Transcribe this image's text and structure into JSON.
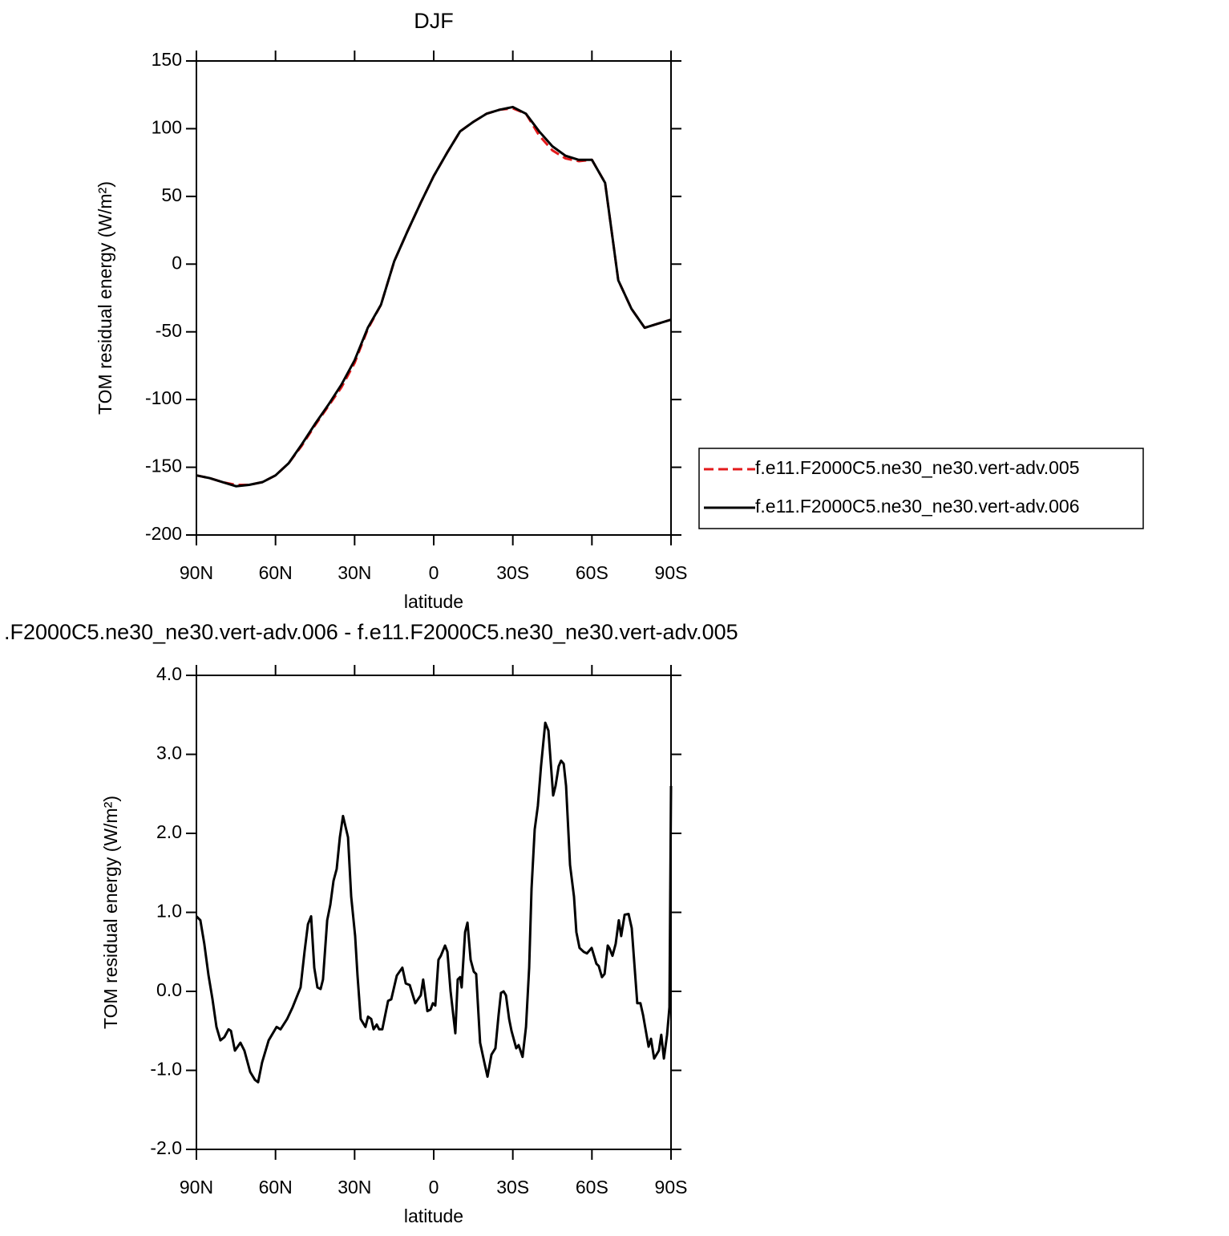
{
  "chart_data": [
    {
      "type": "line",
      "title": "DJF",
      "xlabel": "latitude",
      "ylabel": "TOM residual energy (W/m²)",
      "x": [
        90,
        85,
        80,
        75,
        70,
        65,
        60,
        55,
        50,
        45,
        40,
        35,
        30,
        25,
        20,
        15,
        10,
        5,
        0,
        -5,
        -10,
        -15,
        -20,
        -25,
        -30,
        -35,
        -40,
        -45,
        -50,
        -55,
        -60,
        -65,
        -70,
        -75,
        -80,
        -85,
        -90
      ],
      "series": [
        {
          "name": "f.e11.F2000C5.ne30_ne30.vert-adv.005",
          "color": "#e31a1c",
          "style": "dashed",
          "values": [
            -156,
            -158,
            -161,
            -163,
            -163,
            -161,
            -156,
            -147,
            -134,
            -119,
            -105,
            -91,
            -73,
            -48,
            -30,
            2,
            24,
            45,
            65,
            82,
            98,
            105,
            111,
            114,
            115,
            111,
            95,
            84,
            78,
            76,
            77,
            60,
            -12,
            -33,
            -47,
            -44,
            -41
          ]
        },
        {
          "name": "f.e11.F2000C5.ne30_ne30.vert-adv.006",
          "color": "#000000",
          "style": "solid",
          "values": [
            -156,
            -158,
            -161,
            -164,
            -163,
            -161,
            -156,
            -147,
            -133,
            -118,
            -104,
            -89,
            -71,
            -47,
            -30,
            2,
            24,
            45,
            65,
            82,
            98,
            105,
            111,
            114,
            116,
            111,
            98,
            87,
            80,
            77,
            77,
            60,
            -12,
            -33,
            -47,
            -44,
            -41
          ]
        }
      ],
      "xlim": [
        90,
        -90
      ],
      "xticks": [
        {
          "value": 90,
          "label": "90N"
        },
        {
          "value": 60,
          "label": "60N"
        },
        {
          "value": 30,
          "label": "30N"
        },
        0,
        {
          "value": -30,
          "label": "30S"
        },
        {
          "value": -60,
          "label": "60S"
        },
        {
          "value": -90,
          "label": "90S"
        }
      ],
      "ylim": [
        -200,
        150
      ],
      "yticks": [
        -200,
        -150,
        -100,
        -50,
        0,
        50,
        100,
        150
      ],
      "legend": "right"
    },
    {
      "type": "line",
      "title": ".F2000C5.ne30_ne30.vert-adv.006 - f.e11.F2000C5.ne30_ne30.vert-adv.005",
      "xlabel": "latitude",
      "ylabel": "TOM residual energy (W/m²)",
      "x": [
        90,
        88.5,
        87.0,
        85.4,
        83.9,
        82.4,
        80.9,
        79.4,
        77.8,
        76.9,
        75.4,
        73.3,
        71.8,
        69.6,
        67.8,
        66.6,
        65.1,
        62.6,
        59.6,
        58.1,
        55.6,
        53.5,
        50.5,
        49.0,
        47.7,
        46.5,
        45.3,
        44.1,
        42.9,
        42.0,
        40.4,
        39.2,
        38.0,
        36.8,
        35.6,
        34.4,
        32.5,
        31.3,
        29.8,
        28.9,
        27.7,
        25.9,
        24.9,
        23.7,
        22.8,
        21.6,
        20.7,
        19.5,
        17.3,
        16.1,
        14.0,
        11.9,
        10.6,
        9.1,
        7.0,
        4.9,
        4.0,
        2.4,
        1.2,
        0.3,
        -0.6,
        -1.8,
        -2.7,
        -4.3,
        -5.2,
        -6.4,
        -8.2,
        -9.1,
        -10.0,
        -10.6,
        -11.9,
        -12.8,
        -14.0,
        -15.2,
        -16.1,
        -17.6,
        -19.2,
        -20.4,
        -21.9,
        -23.4,
        -24.6,
        -25.5,
        -26.5,
        -27.4,
        -28.6,
        -29.5,
        -31.3,
        -32.2,
        -33.7,
        -35.0,
        -36.2,
        -37.1,
        -38.3,
        -39.5,
        -40.7,
        -42.3,
        -43.5,
        -45.3,
        -46.2,
        -47.4,
        -48.3,
        -49.3,
        -50.2,
        -51.7,
        -53.2,
        -54.1,
        -55.3,
        -56.9,
        -58.1,
        -59.9,
        -61.7,
        -62.6,
        -63.8,
        -64.8,
        -66.0,
        -66.6,
        -67.8,
        -69.0,
        -70.2,
        -71.1,
        -72.4,
        -73.9,
        -75.1,
        -77.2,
        -78.4,
        -79.4,
        -81.5,
        -82.4,
        -83.6,
        -85.4,
        -86.3,
        -87.3,
        -88.5,
        -89.4,
        -90
      ],
      "series": [
        {
          "name": null,
          "color": "#000000",
          "style": "solid",
          "values": [
            0.95,
            0.9,
            0.6,
            0.2,
            -0.1,
            -0.45,
            -0.62,
            -0.58,
            -0.48,
            -0.5,
            -0.75,
            -0.65,
            -0.75,
            -1.02,
            -1.12,
            -1.15,
            -0.9,
            -0.62,
            -0.45,
            -0.48,
            -0.35,
            -0.2,
            0.05,
            0.5,
            0.85,
            0.95,
            0.3,
            0.05,
            0.03,
            0.15,
            0.9,
            1.1,
            1.4,
            1.55,
            1.95,
            2.22,
            1.95,
            1.2,
            0.7,
            0.2,
            -0.35,
            -0.45,
            -0.32,
            -0.35,
            -0.48,
            -0.42,
            -0.48,
            -0.48,
            -0.12,
            -0.1,
            0.2,
            0.3,
            0.1,
            0.08,
            -0.15,
            -0.05,
            0.15,
            -0.25,
            -0.23,
            -0.15,
            -0.18,
            0.4,
            0.45,
            0.58,
            0.5,
            0.0,
            -0.53,
            0.15,
            0.18,
            0.05,
            0.75,
            0.87,
            0.4,
            0.25,
            0.22,
            -0.65,
            -0.9,
            -1.08,
            -0.8,
            -0.72,
            -0.3,
            -0.02,
            0.0,
            -0.05,
            -0.35,
            -0.5,
            -0.72,
            -0.68,
            -0.83,
            -0.45,
            0.3,
            1.3,
            2.05,
            2.35,
            2.85,
            3.4,
            3.3,
            2.48,
            2.6,
            2.85,
            2.92,
            2.88,
            2.6,
            1.6,
            1.2,
            0.75,
            0.55,
            0.5,
            0.48,
            0.55,
            0.35,
            0.32,
            0.18,
            0.22,
            0.58,
            0.55,
            0.45,
            0.6,
            0.9,
            0.7,
            0.97,
            0.98,
            0.8,
            -0.15,
            -0.15,
            -0.3,
            -0.7,
            -0.6,
            -0.85,
            -0.75,
            -0.55,
            -0.85,
            -0.55,
            -0.2,
            2.6
          ]
        }
      ],
      "xlim": [
        90,
        -90
      ],
      "xticks": [
        {
          "value": 90,
          "label": "90N"
        },
        {
          "value": 60,
          "label": "60N"
        },
        {
          "value": 30,
          "label": "30N"
        },
        0,
        {
          "value": -30,
          "label": "30S"
        },
        {
          "value": -60,
          "label": "60S"
        },
        {
          "value": -90,
          "label": "90S"
        }
      ],
      "ylim": [
        -2,
        4
      ],
      "yticks": [
        {
          "value": -2,
          "label": "-2.0"
        },
        {
          "value": -1,
          "label": "-1.0"
        },
        {
          "value": 0,
          "label": "0.0"
        },
        {
          "value": 1,
          "label": "1.0"
        },
        {
          "value": 2,
          "label": "2.0"
        },
        {
          "value": 3,
          "label": "3.0"
        },
        {
          "value": 4,
          "label": "4.0"
        }
      ]
    }
  ]
}
